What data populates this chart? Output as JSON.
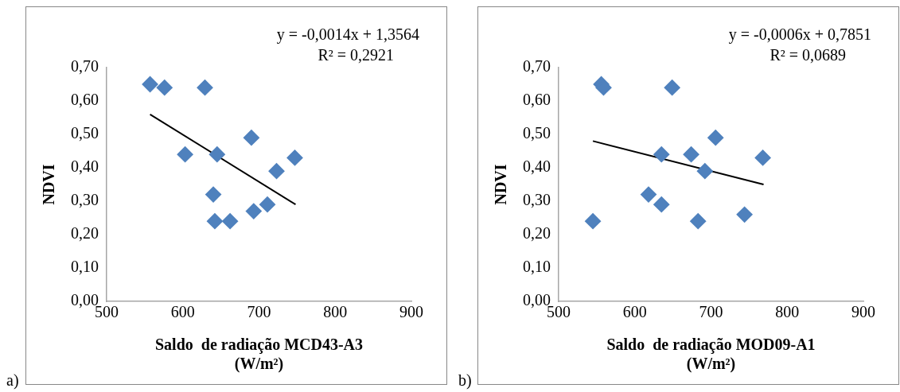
{
  "chart_data": [
    {
      "type": "scatter",
      "xlabel": "Saldo  de radiação MCD43-A3 (W/m²)",
      "ylabel": "NDVI",
      "xlim": [
        500,
        900
      ],
      "xticks": [
        500,
        600,
        700,
        800,
        900
      ],
      "ylim": [
        0,
        0.7
      ],
      "yticks": [
        {
          "value": 0,
          "label": "0,00"
        },
        {
          "value": 0.1,
          "label": "0,10"
        },
        {
          "value": 0.2,
          "label": "0,20"
        },
        {
          "value": 0.3,
          "label": "0,30"
        },
        {
          "value": 0.4,
          "label": "0,40"
        },
        {
          "value": 0.5,
          "label": "0,50"
        },
        {
          "value": 0.6,
          "label": "0,60"
        },
        {
          "value": 0.7,
          "label": "0,70"
        }
      ],
      "grid": false,
      "marker": "diamond",
      "series": [
        {
          "type": "scatter",
          "color": "#4f81bd",
          "x": [
            557,
            576,
            629,
            603,
            645,
            690,
            747,
            723,
            640,
            693,
            711,
            642,
            662
          ],
          "values": [
            0.65,
            0.64,
            0.64,
            0.44,
            0.44,
            0.49,
            0.43,
            0.39,
            0.32,
            0.27,
            0.29,
            0.24,
            0.24
          ]
        },
        {
          "type": "line",
          "color": "#000000",
          "marker": "none",
          "x": [
            557,
            748
          ],
          "values": [
            0.56,
            0.29
          ]
        }
      ],
      "annotations": [
        "y = -0,0014x + 1,3564",
        "R² = 0,2921",
        "a)"
      ]
    },
    {
      "type": "scatter",
      "xlabel": "Saldo  de radiação MOD09-A1 (W/m²)",
      "ylabel": "NDVI",
      "xlim": [
        500,
        900
      ],
      "xticks": [
        500,
        600,
        700,
        800,
        900
      ],
      "ylim": [
        0,
        0.7
      ],
      "yticks": [
        {
          "value": 0,
          "label": "0,00"
        },
        {
          "value": 0.1,
          "label": "0,10"
        },
        {
          "value": 0.2,
          "label": "0,20"
        },
        {
          "value": 0.3,
          "label": "0,30"
        },
        {
          "value": 0.4,
          "label": "0,40"
        },
        {
          "value": 0.5,
          "label": "0,50"
        },
        {
          "value": 0.6,
          "label": "0,60"
        },
        {
          "value": 0.7,
          "label": "0,70"
        }
      ],
      "grid": false,
      "marker": "diamond",
      "series": [
        {
          "type": "scatter",
          "color": "#4f81bd",
          "x": [
            556,
            559,
            649,
            706,
            635,
            674,
            768,
            692,
            618,
            635,
            545,
            683,
            744
          ],
          "values": [
            0.65,
            0.64,
            0.64,
            0.49,
            0.44,
            0.44,
            0.43,
            0.39,
            0.32,
            0.29,
            0.24,
            0.24,
            0.26
          ]
        },
        {
          "type": "line",
          "color": "#000000",
          "marker": "none",
          "x": [
            545,
            769
          ],
          "values": [
            0.48,
            0.35
          ]
        }
      ],
      "annotations": [
        "y = -0,0006x + 0,7851",
        "R² = 0,0689",
        "b)"
      ]
    }
  ]
}
